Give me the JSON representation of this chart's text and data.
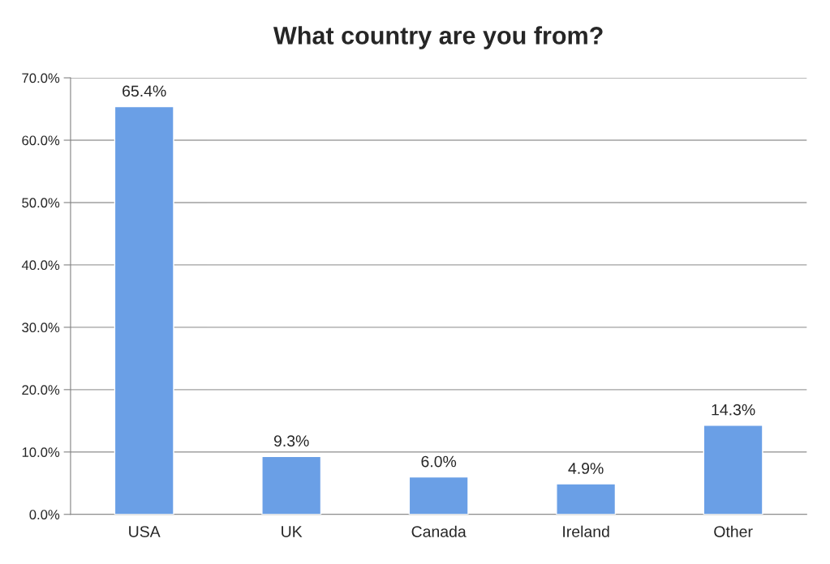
{
  "chart_data": {
    "type": "bar",
    "title": "What country are you from?",
    "categories": [
      "USA",
      "UK",
      "Canada",
      "Ireland",
      "Other"
    ],
    "values": [
      65.4,
      9.3,
      6.0,
      4.9,
      14.3
    ],
    "value_labels": [
      "65.4%",
      "9.3%",
      "6.0%",
      "4.9%",
      "14.3%"
    ],
    "color": "#6a9fe6",
    "ylim": [
      0,
      70
    ],
    "yticks": [
      {
        "value": 0,
        "label": "0.0%"
      },
      {
        "value": 10,
        "label": "10.0%"
      },
      {
        "value": 20,
        "label": "20.0%"
      },
      {
        "value": 30,
        "label": "30.0%"
      },
      {
        "value": 40,
        "label": "40.0%"
      },
      {
        "value": 50,
        "label": "50.0%"
      },
      {
        "value": 60,
        "label": "60.0%"
      },
      {
        "value": 70,
        "label": "70.0%"
      }
    ],
    "grid": "y"
  }
}
